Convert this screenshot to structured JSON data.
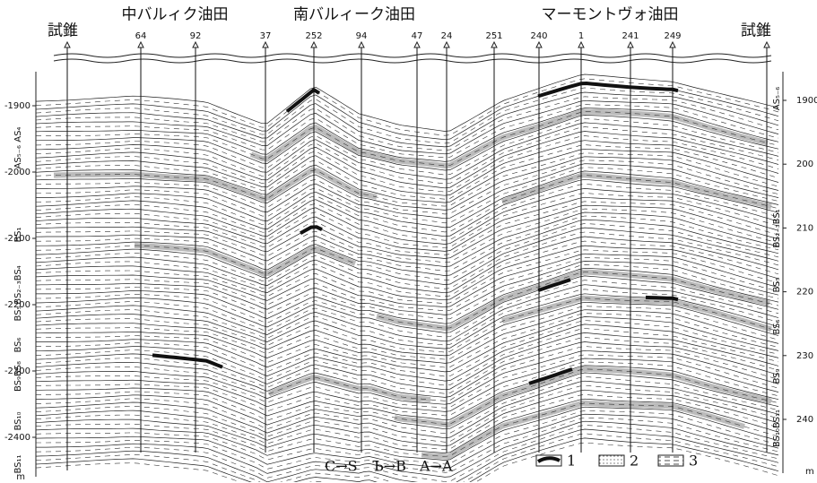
{
  "fields": [
    "中バルィク油田",
    "南バルィーク油田",
    "マーモントヴォ油田"
  ],
  "wells": [
    "試錐",
    "64",
    "92",
    "37",
    "252",
    "94",
    "47",
    "24",
    "251",
    "240",
    "1",
    "241",
    "249",
    "試錐"
  ],
  "depth_left": {
    "labels": [
      "-1900",
      "-2000",
      "-2100",
      "-2200",
      "-2300",
      "-2400"
    ],
    "unit": "m"
  },
  "depth_right": {
    "labels": [
      "1900",
      "200",
      "210",
      "220",
      "230",
      "240"
    ],
    "unit": "m"
  },
  "horizons_left": [
    "AS₅₋₆ AS₄",
    "BS₁",
    "BS₂₋₃BS₄",
    "BS₅",
    "BS₆",
    "BS₉BS₈",
    "BS₁₀",
    "BS₁₁"
  ],
  "horizons_right": [
    "AS₅₋₆",
    "BS₂₋₃BS₁",
    "BS₅",
    "BS₆",
    "BS₉",
    "BS₁₀BS₁₁"
  ],
  "facies_changes": [
    "C→S",
    "Ъ→B",
    "A→A"
  ],
  "legend": [
    "1",
    "2",
    "3"
  ]
}
